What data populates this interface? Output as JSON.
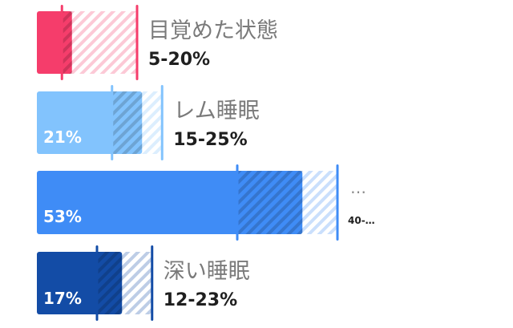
{
  "chart_data": {
    "type": "bar",
    "orientation": "horizontal",
    "title": "",
    "xlabel": "",
    "ylabel": "",
    "xlim": [
      0,
      100
    ],
    "grid": false,
    "legend": "none",
    "categories": [
      "目覚めた状態",
      "レム睡眠",
      "",
      "深い睡眠"
    ],
    "range_labels": [
      "5-20%",
      "15-25%",
      "40-…",
      "12-23%"
    ],
    "values": [
      7,
      21,
      53,
      17
    ],
    "value_labels": [
      "",
      "21%",
      "53%",
      "17%"
    ],
    "ranges": [
      [
        5,
        20
      ],
      [
        15,
        25
      ],
      [
        40,
        60
      ],
      [
        12,
        23
      ]
    ],
    "colors": [
      "#F53D6B",
      "#82C3FD",
      "#3F8CF6",
      "#134CA6"
    ],
    "truncated_name": "…"
  }
}
